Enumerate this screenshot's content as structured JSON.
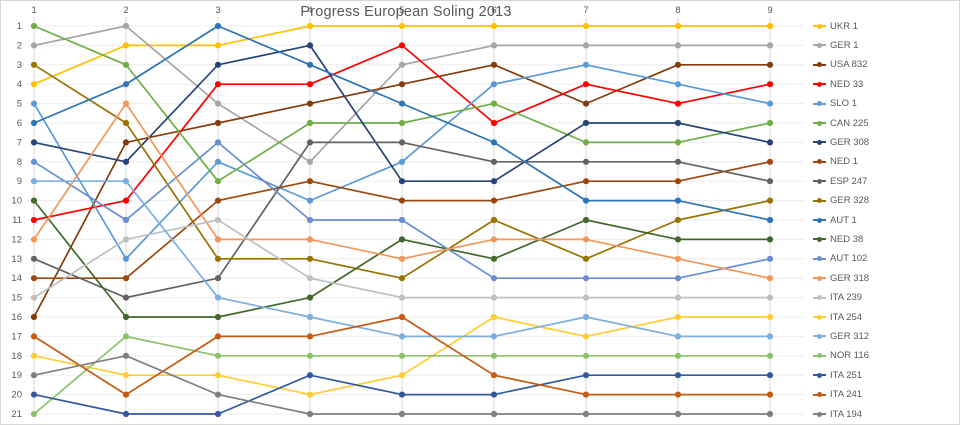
{
  "chart_data": {
    "type": "line",
    "title": "Progress European Soling 2013",
    "xlabel": "",
    "ylabel": "",
    "x_axis_position": "top",
    "x_labels": [
      "1",
      "2",
      "3",
      "4",
      "5",
      "6",
      "7",
      "8",
      "9"
    ],
    "y_labels": [
      "1",
      "2",
      "3",
      "4",
      "5",
      "6",
      "7",
      "8",
      "9",
      "10",
      "11",
      "12",
      "13",
      "14",
      "15",
      "16",
      "17",
      "18",
      "19",
      "20",
      "21"
    ],
    "y_axis": {
      "min": 1,
      "max": 21,
      "inverted": true,
      "meaning": "regatta position/rank"
    },
    "grid": true,
    "legend_position": "right",
    "axis_text_color": "#595959",
    "gridline_color_vertical": "#d9d9d9",
    "gridline_color_horizontal": "#ededed",
    "series": [
      {
        "name": "UKR 1",
        "color": "#FFC000",
        "values": [
          4,
          2,
          2,
          1,
          1,
          1,
          1,
          1,
          1
        ]
      },
      {
        "name": "GER 1",
        "color": "#A6A6A6",
        "values": [
          2,
          1,
          5,
          8,
          3,
          2,
          2,
          2,
          2
        ]
      },
      {
        "name": "USA 832",
        "color": "#843C0C",
        "values": [
          16,
          7,
          6,
          5,
          4,
          3,
          5,
          3,
          3
        ]
      },
      {
        "name": "NED 33",
        "color": "#FF0000",
        "values": [
          11,
          10,
          4,
          4,
          2,
          6,
          4,
          5,
          4
        ]
      },
      {
        "name": "SLO 1",
        "color": "#5B9BD5",
        "values": [
          5,
          13,
          8,
          10,
          8,
          4,
          3,
          4,
          5
        ]
      },
      {
        "name": "CAN 225",
        "color": "#70AD47",
        "values": [
          1,
          3,
          9,
          6,
          6,
          5,
          7,
          7,
          6
        ]
      },
      {
        "name": "GER 308",
        "color": "#264478",
        "values": [
          7,
          8,
          3,
          2,
          9,
          9,
          6,
          6,
          7
        ]
      },
      {
        "name": "NED 1",
        "color": "#9E480E",
        "values": [
          14,
          14,
          10,
          9,
          10,
          10,
          9,
          9,
          8
        ]
      },
      {
        "name": "ESP 247",
        "color": "#636363",
        "values": [
          13,
          15,
          14,
          7,
          7,
          8,
          8,
          8,
          9
        ]
      },
      {
        "name": "GER 328",
        "color": "#997300",
        "values": [
          3,
          6,
          13,
          13,
          14,
          11,
          13,
          11,
          10
        ]
      },
      {
        "name": "AUT 1",
        "color": "#2E75B6",
        "values": [
          6,
          4,
          1,
          3,
          5,
          7,
          10,
          10,
          11
        ]
      },
      {
        "name": "NED 38",
        "color": "#43682B",
        "values": [
          10,
          16,
          16,
          15,
          12,
          13,
          11,
          12,
          12
        ]
      },
      {
        "name": "AUT 102",
        "color": "#698ED0",
        "values": [
          8,
          11,
          7,
          11,
          11,
          14,
          14,
          14,
          13
        ]
      },
      {
        "name": "GER 318",
        "color": "#F1975A",
        "values": [
          12,
          5,
          12,
          12,
          13,
          12,
          12,
          13,
          14
        ]
      },
      {
        "name": "ITA 239",
        "color": "#BFBFBF",
        "values": [
          15,
          12,
          11,
          14,
          15,
          15,
          15,
          15,
          15
        ]
      },
      {
        "name": "ITA 254",
        "color": "#FFCD33",
        "values": [
          18,
          19,
          19,
          20,
          19,
          16,
          17,
          16,
          16
        ]
      },
      {
        "name": "GER 312",
        "color": "#7CAFDD",
        "values": [
          9,
          9,
          15,
          16,
          17,
          17,
          16,
          17,
          17
        ]
      },
      {
        "name": "NOR 116",
        "color": "#8CC168",
        "values": [
          21,
          17,
          18,
          18,
          18,
          18,
          18,
          18,
          18
        ]
      },
      {
        "name": "ITA 251",
        "color": "#335AA1",
        "values": [
          20,
          21,
          21,
          19,
          20,
          20,
          19,
          19,
          19
        ]
      },
      {
        "name": "ITA 241",
        "color": "#C55A11",
        "values": [
          17,
          20,
          17,
          17,
          16,
          19,
          20,
          20,
          20
        ]
      },
      {
        "name": "ITA 194",
        "color": "#7F7F7F",
        "values": [
          19,
          18,
          20,
          21,
          21,
          21,
          21,
          21,
          21
        ]
      }
    ]
  }
}
